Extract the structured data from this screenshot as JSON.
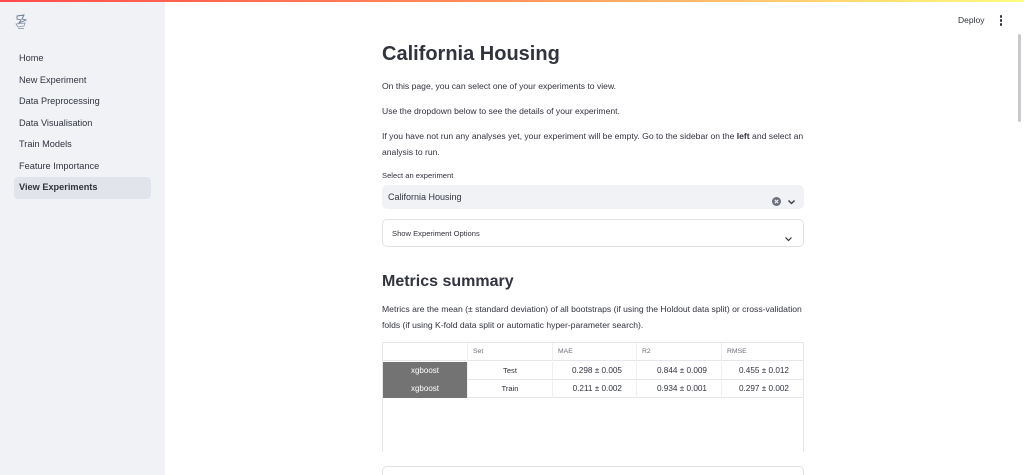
{
  "sidebar": {
    "logo_icon": "app-logo-icon",
    "items": [
      {
        "label": "Home",
        "active": false
      },
      {
        "label": "New Experiment",
        "active": false
      },
      {
        "label": "Data Preprocessing",
        "active": false
      },
      {
        "label": "Data Visualisation",
        "active": false
      },
      {
        "label": "Train Models",
        "active": false
      },
      {
        "label": "Feature Importance",
        "active": false
      },
      {
        "label": "View Experiments",
        "active": true
      }
    ]
  },
  "header": {
    "deploy_label": "Deploy",
    "menu_icon": "kebab-menu-icon",
    "accent_colors": [
      "#ff4b4b",
      "#fffd80"
    ]
  },
  "main": {
    "title": "California Housing",
    "intro_1": "On this page, you can select one of your experiments to view.",
    "intro_2": "Use the dropdown below to see the details of your experiment.",
    "intro_3_before": "If you have not run any analyses yet, your experiment will be empty. Go to the sidebar on the ",
    "intro_3_bold": "left",
    "intro_3_after": " and select an analysis to run.",
    "select": {
      "label": "Select an experiment",
      "value": "California Housing",
      "clear_icon": "clear-icon",
      "chevron_icon": "chevron-down-icon"
    },
    "expander": {
      "label": "Show Experiment Options",
      "chevron_icon": "chevron-down-icon"
    },
    "metrics": {
      "title": "Metrics summary",
      "description": "Metrics are the mean (± standard deviation) of all bootstraps (if using the Holdout data split) or cross-validation folds (if using K-fold data split or automatic hyper-parameter search).",
      "columns": [
        "",
        "Set",
        "MAE",
        "R2",
        "RMSE"
      ],
      "rows": [
        {
          "model": "xgboost",
          "set": "Test",
          "mae": "0.298 ± 0.005",
          "r2": "0.844 ± 0.009",
          "rmse": "0.455 ± 0.012"
        },
        {
          "model": "xgboost",
          "set": "Train",
          "mae": "0.211 ± 0.002",
          "r2": "0.934 ± 0.001",
          "rmse": "0.297 ± 0.002"
        }
      ]
    }
  }
}
